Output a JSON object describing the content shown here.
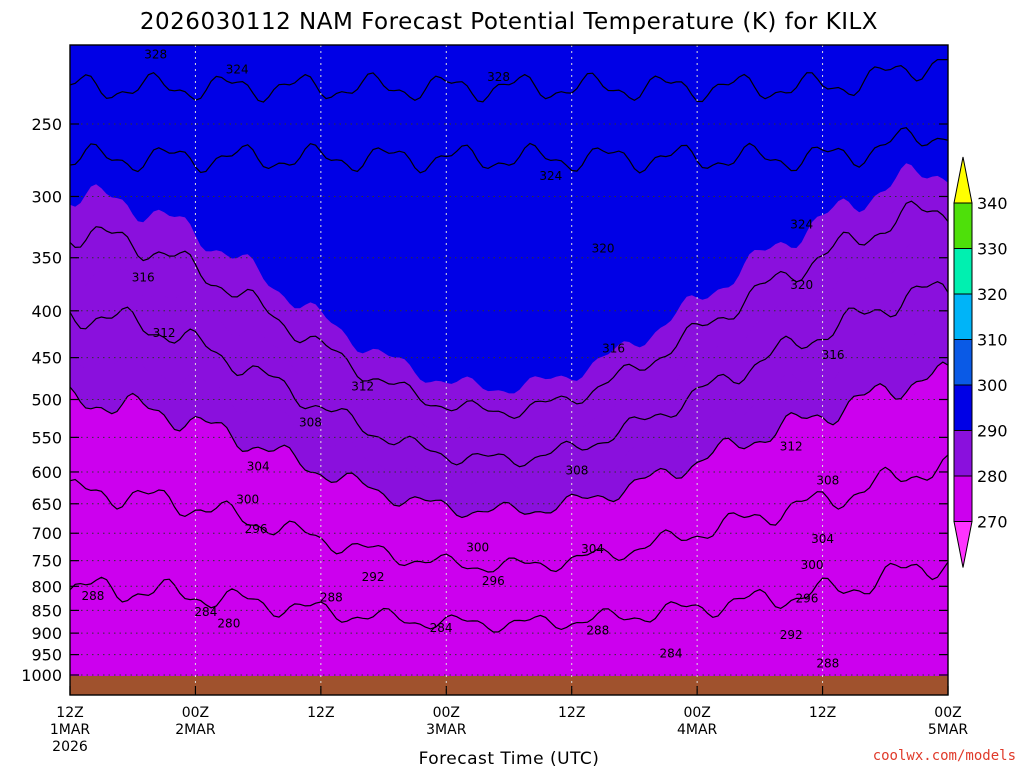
{
  "chart_data": {
    "type": "heatmap",
    "title": "2026030112 NAM Forecast Potential Temperature (K) for KILX",
    "xlabel": "Forecast Time (UTC)",
    "ylabel": "",
    "credit": "coolwx.com/models",
    "x_ticks": [
      {
        "hours": 0,
        "lines": [
          "12Z",
          "1MAR",
          "2026"
        ]
      },
      {
        "hours": 12,
        "lines": [
          "00Z",
          "2MAR"
        ]
      },
      {
        "hours": 24,
        "lines": [
          "12Z"
        ]
      },
      {
        "hours": 36,
        "lines": [
          "00Z",
          "3MAR"
        ]
      },
      {
        "hours": 48,
        "lines": [
          "12Z"
        ]
      },
      {
        "hours": 60,
        "lines": [
          "00Z",
          "4MAR"
        ]
      },
      {
        "hours": 72,
        "lines": [
          "12Z"
        ]
      },
      {
        "hours": 84,
        "lines": [
          "00Z",
          "5MAR"
        ]
      }
    ],
    "x_range_hours": [
      0,
      84
    ],
    "y_ticks_hpa": [
      250,
      300,
      350,
      400,
      450,
      500,
      550,
      600,
      650,
      700,
      750,
      800,
      850,
      900,
      950,
      1000
    ],
    "y_range_hpa": [
      200,
      1000
    ],
    "y_scale": "log-pressure",
    "colorbar": {
      "levels": [
        270,
        280,
        290,
        300,
        310,
        320,
        330,
        340
      ],
      "colors": [
        "#ff33ff",
        "#cc00ee",
        "#8a10dd",
        "#0000e6",
        "#0a5ae6",
        "#00b4f8",
        "#00f0b0",
        "#4ee00a",
        "#ffff00"
      ],
      "extend": "both"
    },
    "ground_color": "#a0522d",
    "contour_interval": 4,
    "contour_labels": [
      {
        "value": "328",
        "hours": 8.2,
        "hpa": 210
      },
      {
        "value": "324",
        "hours": 16,
        "hpa": 218
      },
      {
        "value": "328",
        "hours": 41,
        "hpa": 222
      },
      {
        "value": "324",
        "hours": 46,
        "hpa": 285
      },
      {
        "value": "324",
        "hours": 70,
        "hpa": 322
      },
      {
        "value": "320",
        "hours": 51,
        "hpa": 342
      },
      {
        "value": "320",
        "hours": 70,
        "hpa": 375
      },
      {
        "value": "316",
        "hours": 7,
        "hpa": 368
      },
      {
        "value": "316",
        "hours": 52,
        "hpa": 440
      },
      {
        "value": "316",
        "hours": 73,
        "hpa": 447
      },
      {
        "value": "312",
        "hours": 9,
        "hpa": 423
      },
      {
        "value": "312",
        "hours": 28,
        "hpa": 484
      },
      {
        "value": "312",
        "hours": 69,
        "hpa": 563
      },
      {
        "value": "308",
        "hours": 23,
        "hpa": 530
      },
      {
        "value": "308",
        "hours": 48.5,
        "hpa": 598
      },
      {
        "value": "308",
        "hours": 72.5,
        "hpa": 613
      },
      {
        "value": "304",
        "hours": 18,
        "hpa": 592
      },
      {
        "value": "304",
        "hours": 50,
        "hpa": 728
      },
      {
        "value": "304",
        "hours": 72,
        "hpa": 710
      },
      {
        "value": "300",
        "hours": 17,
        "hpa": 643
      },
      {
        "value": "300",
        "hours": 39,
        "hpa": 726
      },
      {
        "value": "300",
        "hours": 71,
        "hpa": 758
      },
      {
        "value": "296",
        "hours": 17.8,
        "hpa": 693
      },
      {
        "value": "296",
        "hours": 40.5,
        "hpa": 789
      },
      {
        "value": "296",
        "hours": 70.5,
        "hpa": 825
      },
      {
        "value": "292",
        "hours": 29,
        "hpa": 781
      },
      {
        "value": "292",
        "hours": 69,
        "hpa": 904
      },
      {
        "value": "288",
        "hours": 2.2,
        "hpa": 820
      },
      {
        "value": "288",
        "hours": 25,
        "hpa": 823
      },
      {
        "value": "288",
        "hours": 50.5,
        "hpa": 894
      },
      {
        "value": "288",
        "hours": 72.5,
        "hpa": 972
      },
      {
        "value": "284",
        "hours": 13,
        "hpa": 853
      },
      {
        "value": "284",
        "hours": 35.5,
        "hpa": 888
      },
      {
        "value": "284",
        "hours": 57.5,
        "hpa": 947
      },
      {
        "value": "280",
        "hours": 15.2,
        "hpa": 878
      }
    ]
  }
}
